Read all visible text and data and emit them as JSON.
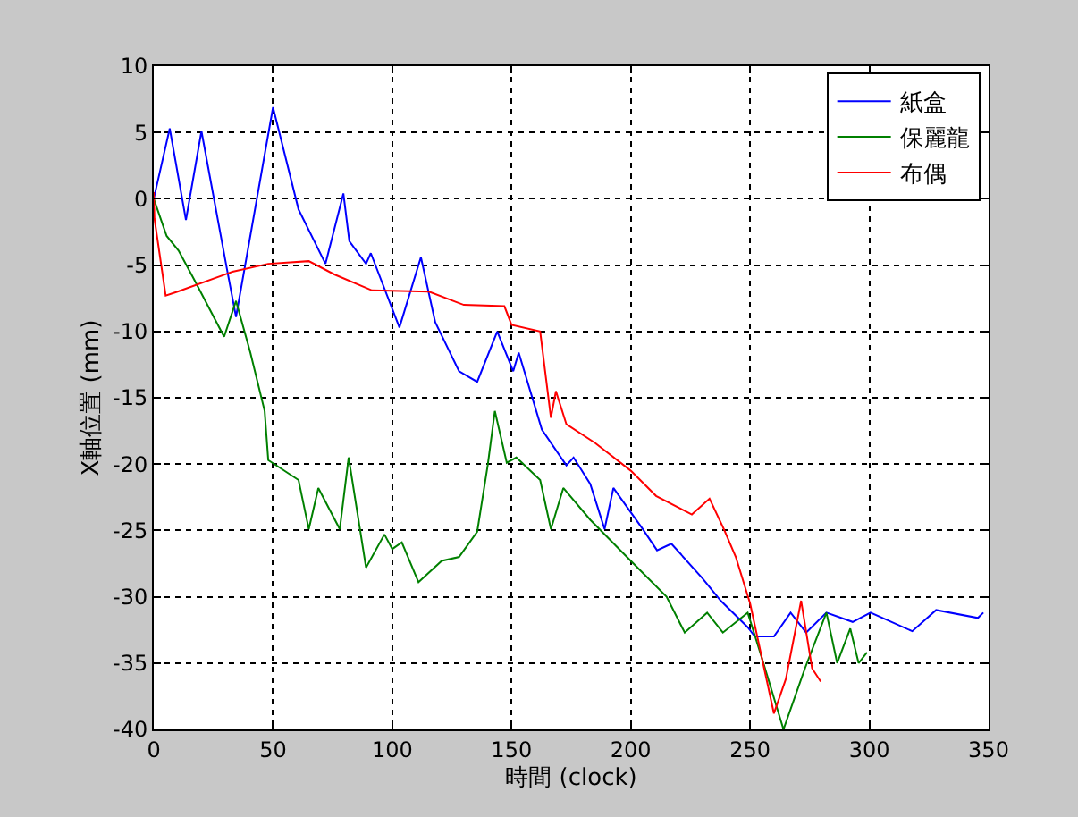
{
  "chart_data": {
    "type": "line",
    "xlabel": "時間 (clock)",
    "ylabel": "X軸位置 (mm)",
    "xlim": [
      0,
      350
    ],
    "xticks": [
      0,
      50,
      100,
      150,
      200,
      250,
      300,
      350
    ],
    "ylim": [
      -40,
      10
    ],
    "yticks": [
      -40,
      -35,
      -30,
      -25,
      -20,
      -15,
      -10,
      -5,
      0,
      5,
      10
    ],
    "grid": true,
    "legend": "top right",
    "line_style": "solid",
    "marker": "none",
    "series": [
      {
        "name": "紙盒",
        "color": "#0000ff",
        "x": [
          0,
          6.7,
          13.5,
          20,
          30.7,
          34.5,
          50,
          60.7,
          72,
          79.5,
          82,
          89,
          91,
          103,
          112,
          118,
          128,
          135.6,
          144,
          150.7,
          153,
          162.7,
          173,
          176,
          183,
          189,
          192.7,
          205,
          211,
          217,
          230,
          237.7,
          249,
          252,
          260,
          267,
          273.5,
          282,
          293,
          300.5,
          318,
          328,
          345.5,
          347.8
        ],
        "values": [
          0,
          5.3,
          -1.6,
          5.1,
          -5.3,
          -8.9,
          6.9,
          -0.8,
          -4.9,
          0.4,
          -3.2,
          -4.9,
          -4.1,
          -9.7,
          -4.4,
          -9.3,
          -13,
          -13.8,
          -10,
          -13,
          -11.6,
          -17.4,
          -20.1,
          -19.5,
          -21.5,
          -24.9,
          -21.8,
          -24.9,
          -26.5,
          -26,
          -28.6,
          -30.3,
          -32.3,
          -33,
          -33,
          -31.2,
          -32.7,
          -31.2,
          -31.9,
          -31.2,
          -32.6,
          -31,
          -31.6,
          -31.2
        ]
      },
      {
        "name": "保麗龍",
        "color": "#008000",
        "x": [
          0,
          5.4,
          10.4,
          16.7,
          29.5,
          34.5,
          40.5,
          46.5,
          48,
          60.7,
          65,
          69,
          78,
          81.7,
          89,
          96.7,
          100,
          104,
          111,
          120.7,
          128,
          135.6,
          140,
          143,
          148,
          152,
          162,
          166.5,
          171.7,
          183,
          200,
          215,
          222.6,
          232,
          238.6,
          249,
          255.6,
          264,
          273,
          282,
          286.5,
          292,
          295.5,
          299
        ],
        "values": [
          0,
          -2.8,
          -3.9,
          -6,
          -10.4,
          -7.7,
          -11.6,
          -16,
          -19.7,
          -21.2,
          -24.9,
          -21.8,
          -24.9,
          -19.5,
          -27.8,
          -25.3,
          -26.4,
          -25.9,
          -28.9,
          -27.3,
          -27,
          -25.1,
          -20.1,
          -16,
          -19.9,
          -19.5,
          -21.2,
          -24.9,
          -21.8,
          -24.2,
          -27.3,
          -30,
          -32.7,
          -31.2,
          -32.7,
          -31.2,
          -35,
          -40,
          -35.4,
          -31.2,
          -35,
          -32.4,
          -35,
          -34.2
        ]
      },
      {
        "name": "布偶",
        "color": "#ff0000",
        "x": [
          0,
          0.3,
          5,
          10,
          33,
          48,
          65,
          75.7,
          91.5,
          115.4,
          130,
          147,
          150,
          162,
          166.5,
          168.6,
          173,
          185,
          200,
          210.6,
          225.6,
          233,
          239,
          244,
          250,
          260,
          265,
          271.4,
          276,
          279.6
        ],
        "values": [
          0.5,
          -1.5,
          -7.3,
          -7,
          -5.5,
          -4.9,
          -4.7,
          -5.7,
          -6.9,
          -7,
          -8,
          -8.1,
          -9.5,
          -10,
          -16.5,
          -14.5,
          -17,
          -18.4,
          -20.5,
          -22.4,
          -23.8,
          -22.6,
          -24.9,
          -27,
          -30.5,
          -38.8,
          -36.2,
          -30.3,
          -35.4,
          -36.4
        ]
      }
    ]
  }
}
